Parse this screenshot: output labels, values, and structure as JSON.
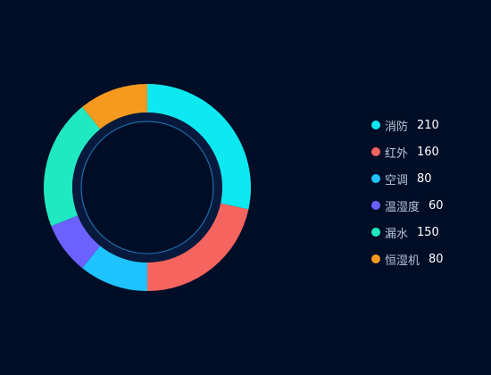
{
  "chart_data": {
    "type": "pie",
    "variant": "donut",
    "title": "",
    "legend_position": "right",
    "start_angle": "top",
    "direction": "clockwise",
    "categories": [
      "消防",
      "红外",
      "空调",
      "温湿度",
      "漏水",
      "恒湿机"
    ],
    "values": [
      210,
      160,
      80,
      60,
      150,
      80
    ],
    "colors": [
      "#0ee8f0",
      "#f5645e",
      "#1ec3ff",
      "#6c61ff",
      "#20e8c0",
      "#f59a1e"
    ],
    "inner_ring_color": "#071a3d",
    "guide_circle_color": "#1e7fc0"
  }
}
